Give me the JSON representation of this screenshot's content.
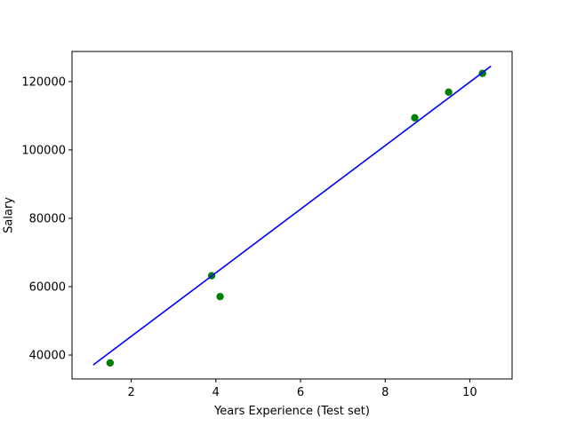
{
  "chart_data": {
    "type": "scatter",
    "xlabel": "Years Experience (Test set)",
    "ylabel": "Salary",
    "xlim": [
      0.6,
      11.0
    ],
    "ylim": [
      33000,
      128800
    ],
    "x_ticks": [
      2,
      4,
      6,
      8,
      10
    ],
    "y_ticks": [
      40000,
      60000,
      80000,
      100000,
      120000
    ],
    "x_tick_labels": [
      "2",
      "4",
      "6",
      "8",
      "10"
    ],
    "y_tick_labels": [
      "40000",
      "60000",
      "80000",
      "100000",
      "120000"
    ],
    "grid": false,
    "series": [
      {
        "kind": "scatter",
        "color": "#008000",
        "points": [
          {
            "x": 1.5,
            "y": 37700
          },
          {
            "x": 3.9,
            "y": 63200
          },
          {
            "x": 4.1,
            "y": 57100
          },
          {
            "x": 8.7,
            "y": 109400
          },
          {
            "x": 9.5,
            "y": 116900
          },
          {
            "x": 10.3,
            "y": 122400
          }
        ]
      },
      {
        "kind": "line",
        "color": "#0000ff",
        "points": [
          {
            "x": 1.1,
            "y": 37100
          },
          {
            "x": 10.5,
            "y": 124500
          }
        ]
      }
    ]
  }
}
